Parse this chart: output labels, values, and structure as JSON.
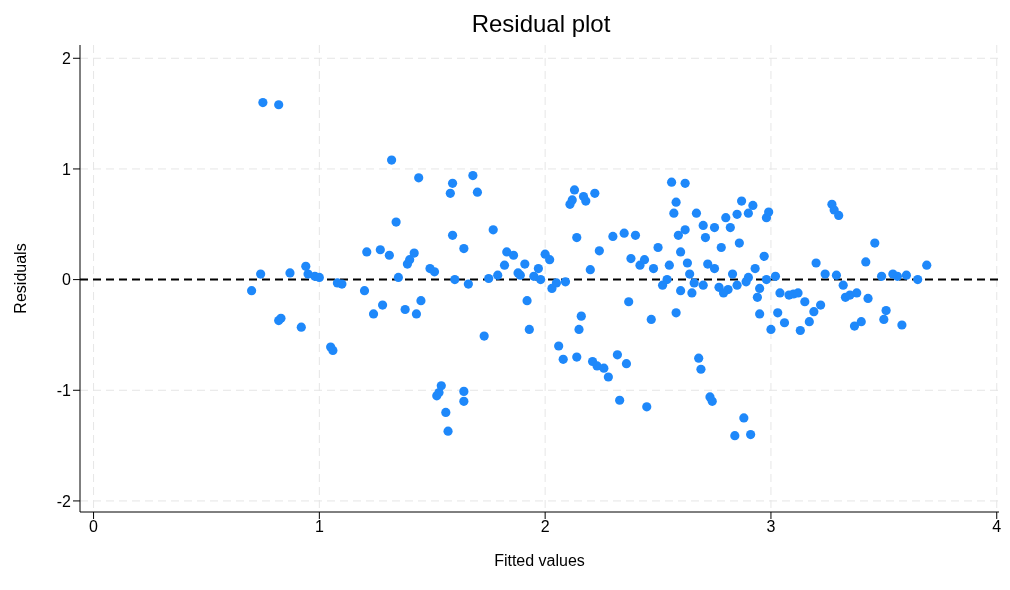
{
  "chart_data": {
    "type": "scatter",
    "title": "Residual plot",
    "xlabel": "Fitted values",
    "ylabel": "Residuals",
    "xlim": [
      -0.06,
      4.01
    ],
    "ylim": [
      -2.1,
      2.12
    ],
    "xticks": [
      0,
      1,
      2,
      3,
      4
    ],
    "yticks": [
      -2,
      -1,
      0,
      1,
      2
    ],
    "grid": true,
    "marker": "circle",
    "ref_lines": [
      {
        "axis": "y",
        "value": 0,
        "color": "#000000",
        "line_style": "dashed"
      }
    ],
    "series": [
      {
        "color": "#1e88fa",
        "x": [
          0.7,
          0.74,
          0.75,
          0.82,
          0.82,
          0.83,
          0.87,
          0.92,
          0.94,
          0.95,
          0.98,
          1.0,
          1.05,
          1.06,
          1.08,
          1.1,
          1.2,
          1.21,
          1.24,
          1.27,
          1.28,
          1.31,
          1.32,
          1.34,
          1.35,
          1.38,
          1.39,
          1.4,
          1.42,
          1.43,
          1.44,
          1.45,
          1.49,
          1.51,
          1.52,
          1.53,
          1.54,
          1.56,
          1.57,
          1.58,
          1.59,
          1.59,
          1.6,
          1.64,
          1.64,
          1.64,
          1.66,
          1.68,
          1.7,
          1.73,
          1.75,
          1.77,
          1.79,
          1.82,
          1.83,
          1.86,
          1.88,
          1.89,
          1.91,
          1.92,
          1.93,
          1.95,
          1.97,
          1.98,
          2.0,
          2.02,
          2.03,
          2.05,
          2.06,
          2.08,
          2.09,
          2.11,
          2.12,
          2.13,
          2.14,
          2.14,
          2.15,
          2.16,
          2.17,
          2.18,
          2.2,
          2.21,
          2.22,
          2.23,
          2.24,
          2.26,
          2.28,
          2.3,
          2.32,
          2.33,
          2.35,
          2.36,
          2.37,
          2.38,
          2.4,
          2.42,
          2.44,
          2.45,
          2.47,
          2.48,
          2.5,
          2.52,
          2.55,
          2.56,
          2.57,
          2.58,
          2.58,
          2.59,
          2.6,
          2.62,
          2.62,
          2.64,
          2.65,
          2.67,
          2.68,
          2.69,
          2.7,
          2.71,
          2.72,
          2.73,
          2.74,
          2.75,
          2.77,
          2.78,
          2.8,
          2.81,
          2.82,
          2.83,
          2.84,
          2.85,
          2.86,
          2.87,
          2.88,
          2.89,
          2.9,
          2.91,
          2.92,
          2.93,
          2.94,
          2.95,
          2.97,
          2.98,
          2.99,
          3.0,
          3.02,
          3.04,
          3.06,
          3.08,
          3.1,
          3.12,
          3.13,
          3.15,
          3.17,
          3.19,
          3.2,
          3.22,
          3.24,
          3.27,
          3.28,
          3.29,
          3.3,
          3.32,
          3.33,
          3.35,
          3.37,
          3.38,
          3.4,
          3.42,
          3.43,
          3.46,
          3.49,
          3.5,
          3.51,
          3.54,
          3.56,
          3.58,
          3.6,
          3.65,
          3.69,
          2.54,
          2.6,
          2.63,
          2.66,
          2.7,
          2.75,
          2.79,
          2.85,
          2.9,
          2.95,
          2.98,
          3.03
        ],
        "values": [
          -0.1,
          0.05,
          1.6,
          1.58,
          -0.37,
          -0.35,
          0.06,
          -0.43,
          0.12,
          0.05,
          0.03,
          0.02,
          -0.61,
          -0.64,
          -0.03,
          -0.04,
          -0.1,
          0.25,
          -0.31,
          0.27,
          -0.23,
          0.22,
          1.08,
          0.52,
          0.02,
          -0.27,
          0.14,
          0.18,
          0.24,
          -0.31,
          0.92,
          -0.19,
          0.1,
          0.07,
          -1.05,
          -1.02,
          -0.96,
          -1.2,
          -1.37,
          0.78,
          0.87,
          0.4,
          0.0,
          0.28,
          -1.01,
          -1.1,
          -0.04,
          0.94,
          0.79,
          -0.51,
          0.01,
          0.45,
          0.04,
          0.13,
          0.25,
          0.22,
          0.06,
          0.04,
          0.14,
          -0.19,
          -0.45,
          0.03,
          0.1,
          0.0,
          0.23,
          0.18,
          -0.08,
          -0.03,
          -0.6,
          -0.72,
          -0.02,
          0.68,
          0.72,
          0.81,
          0.38,
          -0.7,
          -0.45,
          -0.33,
          0.75,
          0.71,
          0.09,
          -0.74,
          0.78,
          -0.78,
          0.26,
          -0.8,
          -0.88,
          0.39,
          -0.68,
          -1.09,
          0.42,
          -0.76,
          -0.2,
          0.19,
          0.4,
          0.13,
          0.18,
          -1.15,
          -0.36,
          0.1,
          0.29,
          -0.05,
          0.13,
          0.88,
          0.6,
          0.7,
          -0.3,
          0.4,
          0.25,
          0.87,
          0.45,
          0.05,
          -0.12,
          0.6,
          -0.71,
          -0.81,
          0.49,
          0.38,
          0.14,
          -1.06,
          -1.1,
          0.47,
          -0.07,
          0.29,
          0.56,
          -0.09,
          0.47,
          0.05,
          -1.41,
          0.59,
          0.33,
          0.71,
          -1.25,
          -0.02,
          0.6,
          -1.4,
          0.67,
          0.1,
          -0.16,
          -0.31,
          0.21,
          0.56,
          0.61,
          -0.45,
          0.03,
          -0.12,
          -0.39,
          -0.14,
          -0.13,
          -0.12,
          -0.46,
          -0.2,
          -0.38,
          -0.29,
          0.15,
          -0.23,
          0.05,
          0.68,
          0.63,
          0.04,
          0.58,
          -0.05,
          -0.16,
          -0.14,
          -0.42,
          -0.12,
          -0.38,
          0.16,
          -0.17,
          0.33,
          0.03,
          -0.36,
          -0.28,
          0.05,
          0.03,
          -0.41,
          0.04,
          0.0,
          0.13,
          0.0,
          -0.1,
          0.15,
          -0.03,
          -0.05,
          0.1,
          -0.12,
          -0.05,
          0.02,
          -0.08,
          0.0,
          -0.3
        ]
      }
    ]
  }
}
